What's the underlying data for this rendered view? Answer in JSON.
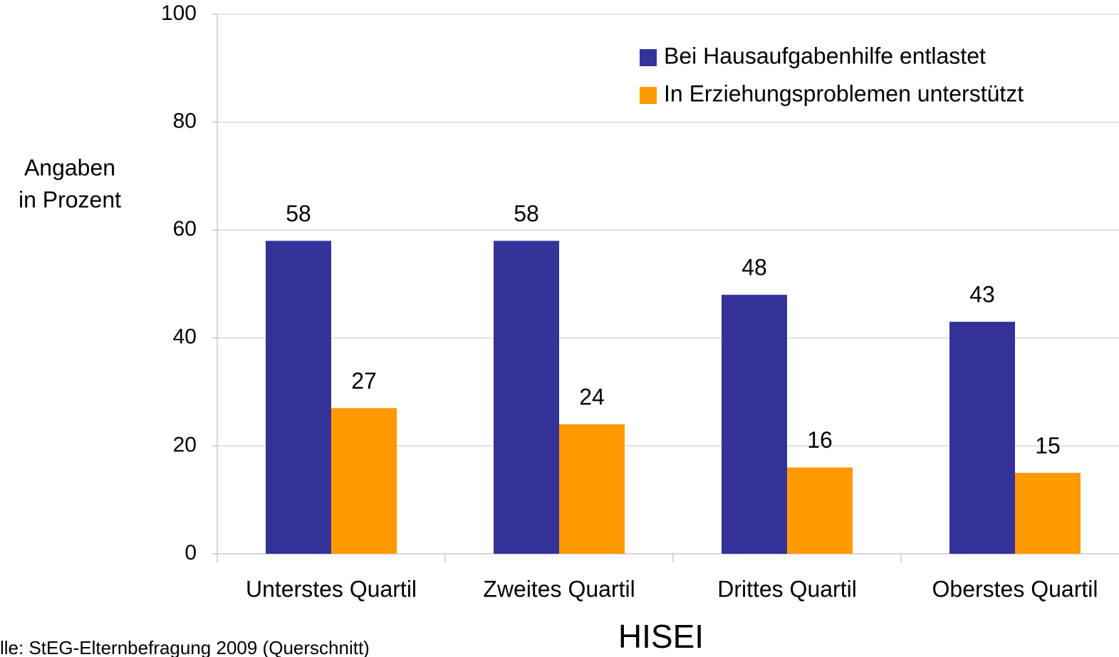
{
  "chart_data": {
    "type": "bar",
    "categories": [
      "Unterstes Quartil",
      "Zweites Quartil",
      "Drittes Quartil",
      "Oberstes Quartil"
    ],
    "series": [
      {
        "name": "Bei Hausaufgabenhilfe entlastet",
        "color": "#333399",
        "values": [
          58,
          58,
          48,
          43
        ]
      },
      {
        "name": "In Erziehungsproblemen unterstützt",
        "color": "#ff9900",
        "values": [
          27,
          24,
          16,
          15
        ]
      }
    ],
    "ylim": [
      0,
      100
    ],
    "yticks": [
      0,
      20,
      40,
      60,
      80,
      100
    ],
    "grid": true,
    "ylabel_lines": [
      "Angaben",
      "in Prozent"
    ],
    "xlabel": "HISEI",
    "source": "lle: StEG-Elternbefragung 2009 (Querschnitt)",
    "legend": "top-right"
  }
}
